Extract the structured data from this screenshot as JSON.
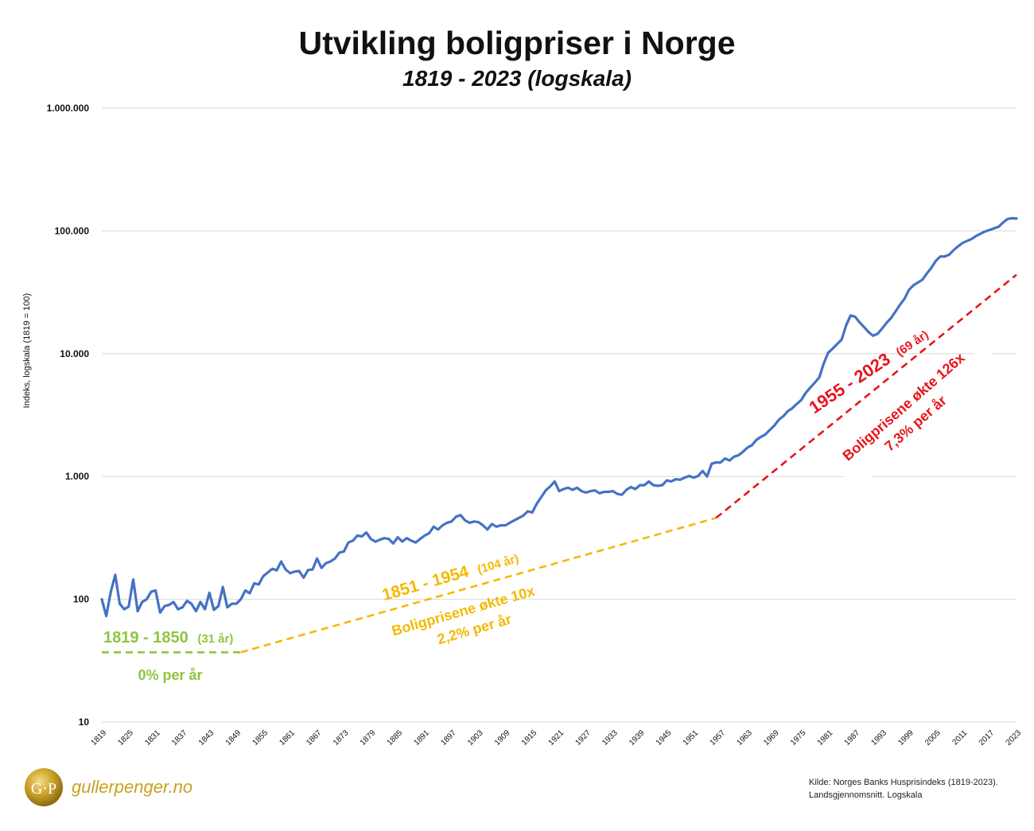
{
  "title": "Utvikling boligpriser i Norge",
  "subtitle": "1819 - 2023 (logskala)",
  "source_line1": "Kilde: Norges Banks Husprisindeks (1819-2023).",
  "source_line2": "Landsgjennomsnitt. Logskala",
  "brand": {
    "logo_text": "G·P",
    "name": "gullerpenger.no"
  },
  "colors": {
    "line": "#4472c4",
    "green": "#8cc63f",
    "yellow": "#f5b800",
    "red": "#e8141b",
    "grid": "#d9d9d9"
  },
  "annotations": {
    "green_range": "1819 - 1850",
    "green_years": "(31 år)",
    "green_rate": "0% per år",
    "yellow_range": "1851 - 1954",
    "yellow_years": "(104 år)",
    "yellow_growth": "Boligprisene økte 10x",
    "yellow_rate": "2,2% per år",
    "red_range": "1955 - 2023",
    "red_years": "(69 år)",
    "red_growth": "Boligprisene økte 126x",
    "red_rate": "7,3% per år"
  },
  "chart_data": {
    "type": "line",
    "ylabel": "Indeks, logskala (1819 = 100)",
    "yscale": "log",
    "ylim": [
      10,
      1000000
    ],
    "xlim": [
      1819,
      2023
    ],
    "yticks": [
      10,
      100,
      1000,
      10000,
      100000,
      1000000
    ],
    "ytick_labels": [
      "10",
      "100",
      "1.000",
      "10.000",
      "100.000",
      "1.000.000"
    ],
    "xticks": [
      1819,
      1825,
      1831,
      1837,
      1843,
      1849,
      1855,
      1861,
      1867,
      1873,
      1879,
      1885,
      1891,
      1897,
      1903,
      1909,
      1915,
      1921,
      1927,
      1933,
      1939,
      1945,
      1951,
      1957,
      1963,
      1969,
      1975,
      1981,
      1987,
      1993,
      1999,
      2005,
      2011,
      2017,
      2023
    ],
    "grid": true,
    "series": [
      {
        "x": [
          1819,
          1820,
          1821,
          1822,
          1823,
          1824,
          1825,
          1826,
          1827,
          1828,
          1829,
          1830,
          1831,
          1832,
          1833,
          1834,
          1835,
          1836,
          1837,
          1838,
          1839,
          1840,
          1841,
          1842,
          1843,
          1844,
          1845,
          1846,
          1847,
          1848,
          1849,
          1850,
          1851,
          1852,
          1853,
          1854,
          1855,
          1856,
          1857,
          1858,
          1859,
          1860,
          1861,
          1862,
          1863,
          1864,
          1865,
          1866,
          1867,
          1868,
          1869,
          1870,
          1871,
          1872,
          1873,
          1874,
          1875,
          1876,
          1877,
          1878,
          1879,
          1880,
          1881,
          1882,
          1883,
          1884,
          1885,
          1886,
          1887,
          1888,
          1889,
          1890,
          1891,
          1892,
          1893,
          1894,
          1895,
          1896,
          1897,
          1898,
          1899,
          1900,
          1901,
          1902,
          1903,
          1904,
          1905,
          1906,
          1907,
          1908,
          1909,
          1910,
          1911,
          1912,
          1913,
          1914,
          1915,
          1916,
          1917,
          1918,
          1919,
          1920,
          1921,
          1922,
          1923,
          1924,
          1925,
          1926,
          1927,
          1928,
          1929,
          1930,
          1931,
          1932,
          1933,
          1934,
          1935,
          1936,
          1937,
          1938,
          1939,
          1940,
          1941,
          1942,
          1943,
          1944,
          1945,
          1946,
          1947,
          1948,
          1949,
          1950,
          1951,
          1952,
          1953,
          1954,
          1955,
          1956,
          1957,
          1958,
          1959,
          1960,
          1961,
          1962,
          1963,
          1964,
          1965,
          1966,
          1967,
          1968,
          1969,
          1970,
          1971,
          1972,
          1973,
          1974,
          1975,
          1976,
          1977,
          1978,
          1979,
          1980,
          1981,
          1982,
          1983,
          1984,
          1985,
          1986,
          1987,
          1988,
          1989,
          1990,
          1991,
          1992,
          1993,
          1994,
          1995,
          1996,
          1997,
          1998,
          1999,
          2000,
          2001,
          2002,
          2003,
          2004,
          2005,
          2006,
          2007,
          2008,
          2009,
          2010,
          2011,
          2012,
          2013,
          2014,
          2015,
          2016,
          2017,
          2018,
          2019,
          2020,
          2021,
          2022,
          2023
        ],
        "values": [
          100,
          73,
          115,
          158,
          92,
          83,
          87,
          145,
          80,
          95,
          100,
          115,
          118,
          78,
          88,
          90,
          95,
          83,
          86,
          97,
          92,
          80,
          95,
          83,
          113,
          82,
          88,
          126,
          86,
          92,
          92,
          100,
          118,
          112,
          135,
          132,
          154,
          165,
          177,
          172,
          203,
          175,
          163,
          168,
          170,
          150,
          173,
          175,
          215,
          180,
          197,
          203,
          215,
          240,
          245,
          290,
          300,
          330,
          325,
          350,
          310,
          295,
          305,
          315,
          310,
          285,
          320,
          295,
          315,
          300,
          290,
          310,
          330,
          345,
          390,
          370,
          400,
          420,
          430,
          470,
          485,
          440,
          420,
          430,
          425,
          400,
          370,
          410,
          390,
          400,
          400,
          420,
          440,
          460,
          480,
          520,
          510,
          600,
          680,
          770,
          830,
          910,
          760,
          790,
          810,
          780,
          810,
          760,
          740,
          760,
          770,
          730,
          750,
          750,
          760,
          720,
          710,
          780,
          820,
          790,
          850,
          850,
          910,
          850,
          840,
          850,
          930,
          910,
          950,
          940,
          980,
          1010,
          980,
          1010,
          1110,
          1000,
          1270,
          1300,
          1300,
          1400,
          1350,
          1450,
          1490,
          1590,
          1720,
          1800,
          1990,
          2100,
          2200,
          2400,
          2600,
          2900,
          3100,
          3400,
          3600,
          3900,
          4200,
          4800,
          5300,
          5800,
          6400,
          8300,
          10200,
          11000,
          12000,
          13000,
          17000,
          20500,
          20000,
          18000,
          16500,
          15000,
          14000,
          14500,
          16000,
          17800,
          19500,
          22000,
          25000,
          28000,
          33000,
          36000,
          38000,
          40000,
          45000,
          50000,
          57000,
          62000,
          62000,
          64000,
          70000,
          75000,
          80000,
          83000,
          86000,
          91000,
          95000,
          99000,
          102000,
          105000,
          108000,
          117000,
          125000,
          127000,
          126000
        ]
      }
    ],
    "trend_lines": [
      {
        "name": "1819 - 1850",
        "x": [
          1819,
          1850
        ],
        "values": [
          37,
          37
        ]
      },
      {
        "name": "1851 - 1954",
        "x": [
          1850,
          1956
        ],
        "values": [
          37,
          460
        ]
      },
      {
        "name": "1955 - 2023",
        "x": [
          1956,
          2023
        ],
        "values": [
          460,
          44000
        ]
      }
    ]
  }
}
